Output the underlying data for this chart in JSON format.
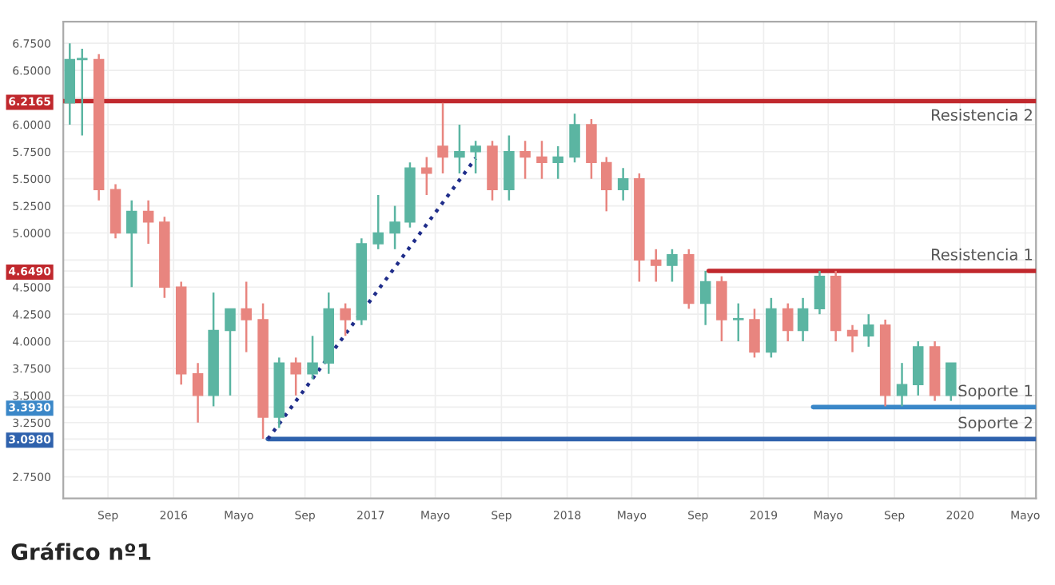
{
  "chart_data": {
    "type": "candlestick",
    "title": "Gráfico nº1",
    "x": [
      "2015-06-22",
      "2015-07-15",
      "2015-08-15",
      "2015-09-15",
      "2015-10-15",
      "2015-11-15",
      "2015-12-15",
      "2016-01-15",
      "2016-02-15",
      "2016-03-15",
      "2016-04-15",
      "2016-05-15",
      "2016-06-15",
      "2016-07-15",
      "2016-08-15",
      "2016-09-15",
      "2016-10-15",
      "2016-11-15",
      "2016-12-15",
      "2017-01-15",
      "2017-02-15",
      "2017-03-15",
      "2017-04-15",
      "2017-05-15",
      "2017-06-15",
      "2017-07-15",
      "2017-08-15",
      "2017-09-15",
      "2017-10-15",
      "2017-11-15",
      "2017-12-15",
      "2018-01-15",
      "2018-02-15",
      "2018-03-15",
      "2018-04-15",
      "2018-05-15",
      "2018-06-15",
      "2018-07-15",
      "2018-08-15",
      "2018-09-15",
      "2018-10-15",
      "2018-11-15",
      "2018-12-15",
      "2019-01-15",
      "2019-02-15",
      "2019-03-15",
      "2019-04-15",
      "2019-05-15",
      "2019-06-15",
      "2019-07-15",
      "2019-08-15",
      "2019-09-15",
      "2019-10-15",
      "2019-11-15",
      "2019-12-15"
    ],
    "ohlc": [
      [
        6.2,
        6.75,
        6.0,
        6.6
      ],
      [
        6.6,
        6.7,
        5.9,
        6.6
      ],
      [
        6.6,
        6.65,
        5.3,
        5.4
      ],
      [
        5.4,
        5.45,
        4.95,
        5.0
      ],
      [
        5.0,
        5.3,
        4.5,
        5.2
      ],
      [
        5.2,
        5.3,
        4.9,
        5.1
      ],
      [
        5.1,
        5.15,
        4.4,
        4.5
      ],
      [
        4.5,
        4.55,
        3.6,
        3.7
      ],
      [
        3.7,
        3.8,
        3.25,
        3.5
      ],
      [
        3.5,
        4.45,
        3.4,
        4.1
      ],
      [
        4.1,
        4.3,
        3.5,
        4.3
      ],
      [
        4.3,
        4.55,
        3.9,
        4.2
      ],
      [
        4.2,
        4.35,
        3.1,
        3.3
      ],
      [
        3.3,
        3.85,
        3.2,
        3.8
      ],
      [
        3.8,
        3.85,
        3.5,
        3.7
      ],
      [
        3.7,
        4.05,
        3.65,
        3.8
      ],
      [
        3.8,
        4.45,
        3.7,
        4.3
      ],
      [
        4.3,
        4.35,
        4.05,
        4.2
      ],
      [
        4.2,
        4.95,
        4.15,
        4.9
      ],
      [
        4.9,
        5.35,
        4.85,
        5.0
      ],
      [
        5.0,
        5.25,
        4.85,
        5.1
      ],
      [
        5.1,
        5.65,
        5.05,
        5.6
      ],
      [
        5.6,
        5.7,
        5.35,
        5.55
      ],
      [
        5.8,
        6.2,
        5.55,
        5.7
      ],
      [
        5.7,
        6.0,
        5.55,
        5.75
      ],
      [
        5.75,
        5.85,
        5.55,
        5.8
      ],
      [
        5.8,
        5.85,
        5.3,
        5.4
      ],
      [
        5.4,
        5.9,
        5.3,
        5.75
      ],
      [
        5.75,
        5.85,
        5.5,
        5.7
      ],
      [
        5.7,
        5.85,
        5.5,
        5.65
      ],
      [
        5.65,
        5.8,
        5.5,
        5.7
      ],
      [
        5.7,
        6.1,
        5.65,
        6.0
      ],
      [
        6.0,
        6.05,
        5.5,
        5.65
      ],
      [
        5.65,
        5.7,
        5.2,
        5.4
      ],
      [
        5.4,
        5.6,
        5.3,
        5.5
      ],
      [
        5.5,
        5.55,
        4.55,
        4.75
      ],
      [
        4.75,
        4.85,
        4.55,
        4.7
      ],
      [
        4.7,
        4.85,
        4.55,
        4.8
      ],
      [
        4.8,
        4.85,
        4.3,
        4.35
      ],
      [
        4.35,
        4.65,
        4.15,
        4.55
      ],
      [
        4.55,
        4.6,
        4.0,
        4.2
      ],
      [
        4.2,
        4.35,
        4.0,
        4.2
      ],
      [
        4.2,
        4.3,
        3.85,
        3.9
      ],
      [
        3.9,
        4.4,
        3.85,
        4.3
      ],
      [
        4.3,
        4.35,
        4.0,
        4.1
      ],
      [
        4.1,
        4.4,
        4.0,
        4.3
      ],
      [
        4.3,
        4.65,
        4.25,
        4.6
      ],
      [
        4.6,
        4.65,
        4.0,
        4.1
      ],
      [
        4.1,
        4.15,
        3.9,
        4.05
      ],
      [
        4.05,
        4.25,
        3.95,
        4.15
      ],
      [
        4.15,
        4.2,
        3.4,
        3.5
      ],
      [
        3.5,
        3.8,
        3.4,
        3.6
      ],
      [
        3.6,
        4.0,
        3.5,
        3.95
      ],
      [
        3.95,
        4.0,
        3.45,
        3.5
      ],
      [
        3.5,
        3.8,
        3.45,
        3.8
      ]
    ],
    "colors": [
      "#5bb5a2",
      "#5bb5a2",
      "#e8857f",
      "#e8857f",
      "#5bb5a2",
      "#e8857f",
      "#e8857f",
      "#e8857f",
      "#e8857f",
      "#5bb5a2",
      "#5bb5a2",
      "#e8857f",
      "#e8857f",
      "#5bb5a2",
      "#e8857f",
      "#5bb5a2",
      "#5bb5a2",
      "#e8857f",
      "#5bb5a2",
      "#5bb5a2",
      "#5bb5a2",
      "#5bb5a2",
      "#e8857f",
      "#e8857f",
      "#5bb5a2",
      "#5bb5a2",
      "#e8857f",
      "#5bb5a2",
      "#e8857f",
      "#e8857f",
      "#5bb5a2",
      "#5bb5a2",
      "#e8857f",
      "#e8857f",
      "#5bb5a2",
      "#e8857f",
      "#e8857f",
      "#5bb5a2",
      "#e8857f",
      "#5bb5a2",
      "#e8857f",
      "#5bb5a2",
      "#e8857f",
      "#5bb5a2",
      "#e8857f",
      "#5bb5a2",
      "#5bb5a2",
      "#e8857f",
      "#e8857f",
      "#5bb5a2",
      "#e8857f",
      "#5bb5a2",
      "#5bb5a2",
      "#e8857f",
      "#5bb5a2"
    ],
    "series": [
      {
        "type": "line",
        "name": "Resistencia 2",
        "color": "#c0282d",
        "x": [
          "2015-06-10",
          "2020-05-21"
        ],
        "values": [
          6.2165,
          6.2165
        ]
      },
      {
        "type": "line",
        "name": "Resistencia 1",
        "color": "#c0282d",
        "x": [
          "2018-09-21",
          "2020-05-21"
        ],
        "values": [
          4.649,
          4.649
        ]
      },
      {
        "type": "line",
        "name": "Soporte 1",
        "color": "#3a87c8",
        "x": [
          "2019-04-03",
          "2020-05-21"
        ],
        "values": [
          3.393,
          3.393
        ]
      },
      {
        "type": "line",
        "name": "Soporte 2",
        "color": "#2f62ad",
        "x": [
          "2016-06-24",
          "2020-05-21"
        ],
        "values": [
          3.098,
          3.098
        ]
      },
      {
        "type": "line",
        "color": "#1f2d8a",
        "line_style": "dotted",
        "x": [
          "2016-06-24",
          "2017-07-15"
        ],
        "values": [
          3.098,
          5.69
        ]
      }
    ],
    "xlim": [
      "2015-06-10",
      "2020-05-21"
    ],
    "xticks": [
      {
        "value": "2015-09-01",
        "label": "Sep"
      },
      {
        "value": "2016-01-01",
        "label": "2016"
      },
      {
        "value": "2016-05-01",
        "label": "Mayo"
      },
      {
        "value": "2016-09-01",
        "label": "Sep"
      },
      {
        "value": "2017-01-01",
        "label": "2017"
      },
      {
        "value": "2017-05-01",
        "label": "Mayo"
      },
      {
        "value": "2017-09-01",
        "label": "Sep"
      },
      {
        "value": "2018-01-01",
        "label": "2018"
      },
      {
        "value": "2018-05-01",
        "label": "Mayo"
      },
      {
        "value": "2018-09-01",
        "label": "Sep"
      },
      {
        "value": "2019-01-01",
        "label": "2019"
      },
      {
        "value": "2019-05-01",
        "label": "Mayo"
      },
      {
        "value": "2019-09-01",
        "label": "Sep"
      },
      {
        "value": "2020-01-01",
        "label": "2020"
      },
      {
        "value": "2020-05-01",
        "label": "Mayo"
      }
    ],
    "ylim": [
      2.55,
      6.95
    ],
    "yticks": [
      {
        "value": 2.75,
        "label": "2.7500"
      },
      {
        "value": 3.0,
        "label": null
      },
      {
        "value": 3.25,
        "label": "3.2500"
      },
      {
        "value": 3.5,
        "label": "3.5000"
      },
      {
        "value": 3.75,
        "label": "3.7500"
      },
      {
        "value": 4.0,
        "label": "4.0000"
      },
      {
        "value": 4.25,
        "label": "4.2500"
      },
      {
        "value": 4.5,
        "label": "4.5000"
      },
      {
        "value": 4.75,
        "label": null
      },
      {
        "value": 5.0,
        "label": "5.0000"
      },
      {
        "value": 5.25,
        "label": "5.2500"
      },
      {
        "value": 5.5,
        "label": "5.5000"
      },
      {
        "value": 5.75,
        "label": "5.7500"
      },
      {
        "value": 6.0,
        "label": "6.0000"
      },
      {
        "value": 6.25,
        "label": null
      },
      {
        "value": 6.5,
        "label": "6.5000"
      },
      {
        "value": 6.75,
        "label": "6.7500"
      },
      {
        "value": 6.2165,
        "label": "6.2165"
      },
      {
        "value": 4.649,
        "label": "4.6490"
      },
      {
        "value": 3.393,
        "label": "3.3930"
      },
      {
        "value": 3.098,
        "label": "3.0980"
      }
    ],
    "grid": true
  }
}
